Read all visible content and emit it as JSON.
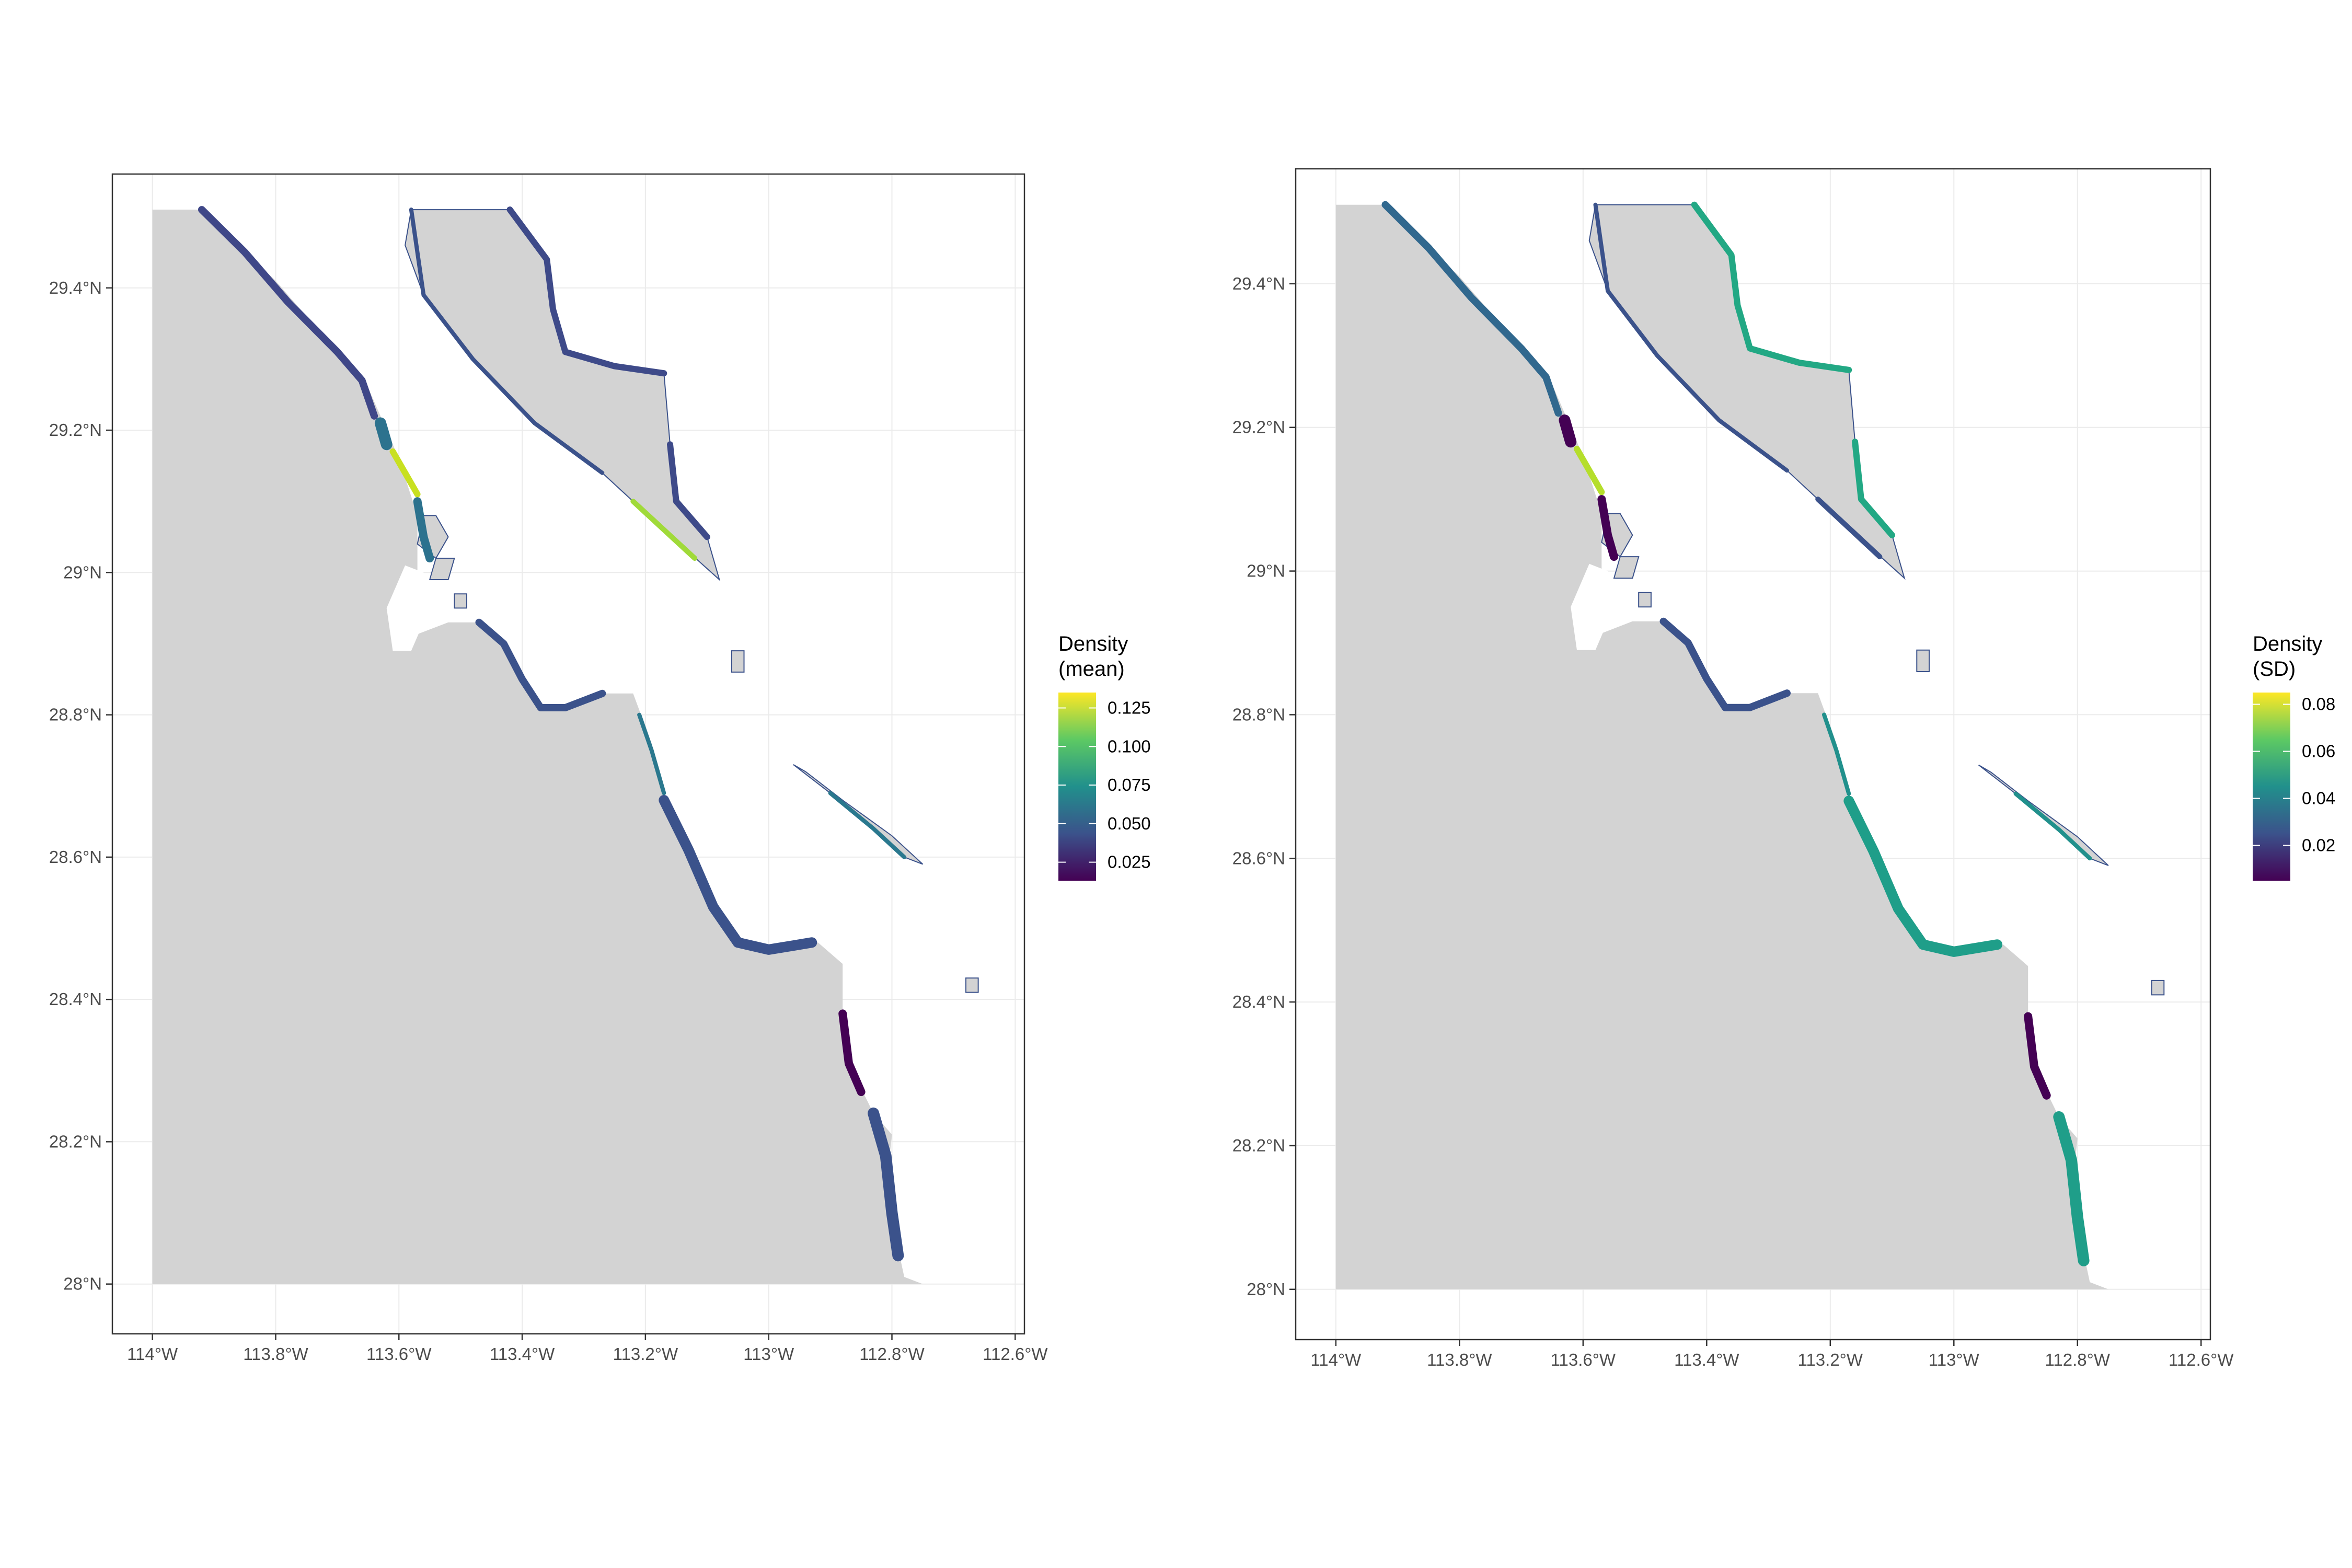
{
  "chart_data": [
    {
      "type": "map",
      "panel": "left",
      "legend": {
        "title_lines": [
          "Density",
          "(mean)"
        ],
        "labels": [
          "0.125",
          "0.100",
          "0.075",
          "0.050",
          "0.025"
        ],
        "values": [
          0.125,
          0.1,
          0.075,
          0.05,
          0.025
        ],
        "range": [
          0.013,
          0.135
        ],
        "palette": [
          "#440154",
          "#3b528b",
          "#21908c",
          "#5dc963",
          "#fde725"
        ]
      },
      "x_ticks": [
        "114°W",
        "113.8°W",
        "113.6°W",
        "113.4°W",
        "113.2°W",
        "113°W",
        "112.8°W",
        "112.6°W"
      ],
      "x_values": [
        -114.0,
        -113.8,
        -113.6,
        -113.4,
        -113.2,
        -113.0,
        -112.8,
        -112.6
      ],
      "y_ticks": [
        "28°N",
        "28.2°N",
        "28.4°N",
        "28.6°N",
        "28.8°N",
        "29°N",
        "29.2°N",
        "29.4°N"
      ],
      "y_values": [
        28.0,
        28.2,
        28.4,
        28.6,
        28.8,
        29.0,
        29.2,
        29.4
      ],
      "xlim": [
        -114.065,
        -112.585
      ],
      "ylim": [
        27.93,
        29.56
      ],
      "grid": true,
      "legend_position": "right",
      "land_color": "#d3d3d3",
      "coast_colors": {
        "default": "#3b528b",
        "north_baja": "#3f4788",
        "bay_lagoon": "#2c728e",
        "yellow_spot": "#c8e020",
        "angel_south": "#a0da39",
        "angel_east": "#3e4a89",
        "low_segment": "#440154",
        "south_coast": "#3b528b",
        "san_lorenzo": "#2a788e"
      }
    },
    {
      "type": "map",
      "panel": "right",
      "legend": {
        "title_lines": [
          "Density",
          "(SD)"
        ],
        "labels": [
          "0.08",
          "0.06",
          "0.04",
          "0.02"
        ],
        "values": [
          0.08,
          0.06,
          0.04,
          0.02
        ],
        "range": [
          0.005,
          0.085
        ],
        "palette": [
          "#440154",
          "#3b528b",
          "#21908c",
          "#5dc963",
          "#fde725"
        ]
      },
      "x_ticks": [
        "114°W",
        "113.8°W",
        "113.6°W",
        "113.4°W",
        "113.2°W",
        "113°W",
        "112.8°W",
        "112.6°W"
      ],
      "x_values": [
        -114.0,
        -113.8,
        -113.6,
        -113.4,
        -113.2,
        -113.0,
        -112.8,
        -112.6
      ],
      "y_ticks": [
        "28°N",
        "28.2°N",
        "28.4°N",
        "28.6°N",
        "28.8°N",
        "29°N",
        "29.2°N",
        "29.4°N"
      ],
      "y_values": [
        28.0,
        28.2,
        28.4,
        28.6,
        28.8,
        29.0,
        29.2,
        29.4
      ],
      "xlim": [
        -114.065,
        -112.585
      ],
      "ylim": [
        27.93,
        29.56
      ],
      "grid": true,
      "legend_position": "right",
      "land_color": "#d3d3d3",
      "coast_colors": {
        "default": "#3b528b",
        "north_baja": "#31688e",
        "bay_lagoon": "#440154",
        "yellow_spot": "#b5de2b",
        "angel_south": "#3b528b",
        "angel_east": "#22a884",
        "low_segment": "#440154",
        "south_coast": "#1f9e89",
        "san_lorenzo": "#21908c"
      }
    }
  ]
}
